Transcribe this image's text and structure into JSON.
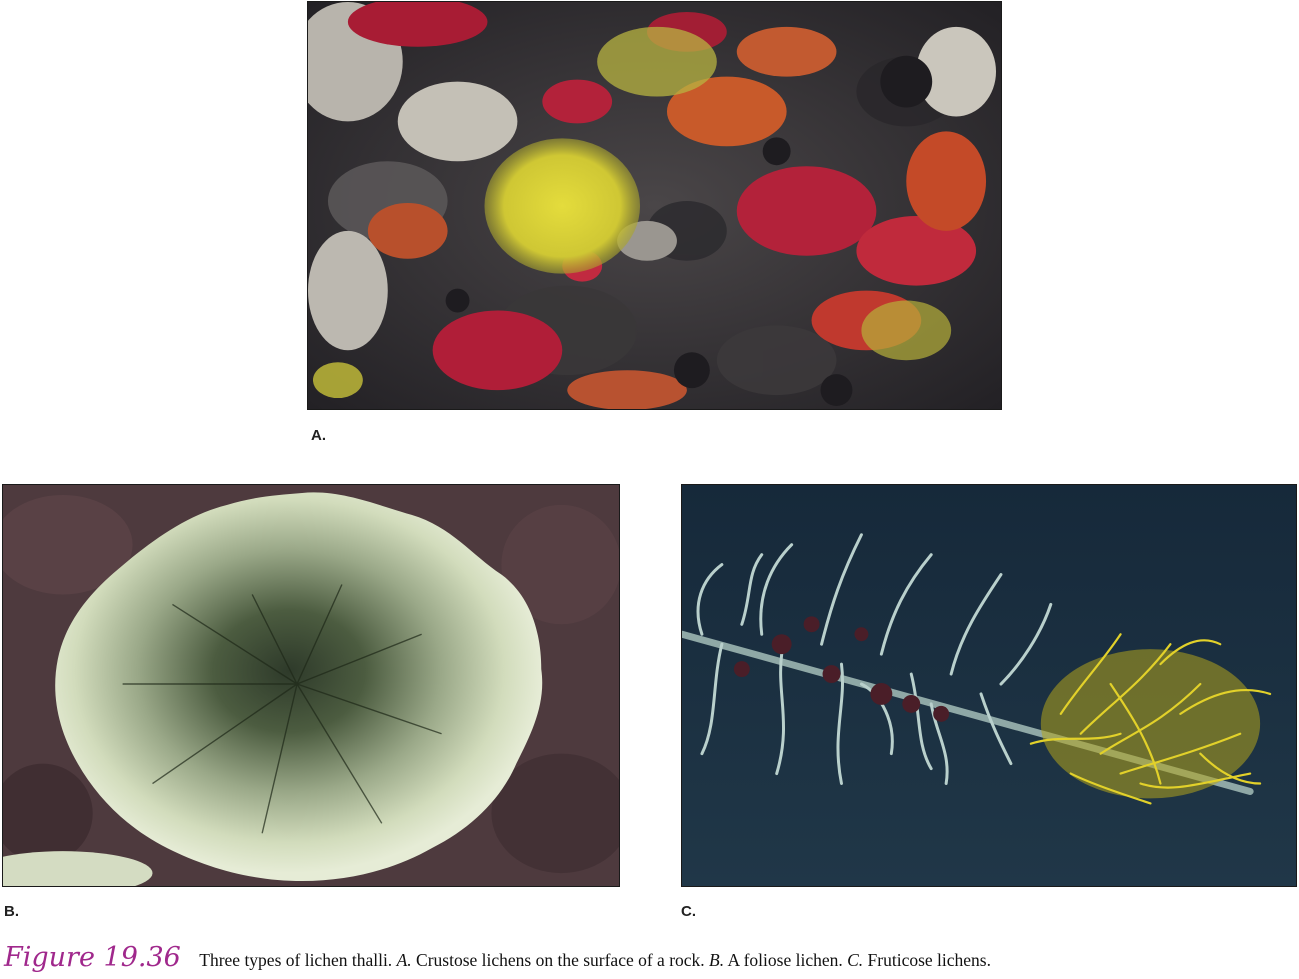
{
  "panels": {
    "a": {
      "label": "A."
    },
    "b": {
      "label": "B."
    },
    "c": {
      "label": "C."
    }
  },
  "caption": {
    "figure_number": "Figure 19.36",
    "intro": "Three types of lichen thalli.",
    "a_tag": "A.",
    "a_text": "Crustose lichens on the surface of a rock.",
    "b_tag": "B.",
    "b_text": "A foliose lichen.",
    "c_tag": "C.",
    "c_text": "Fruticose lichens."
  },
  "colors": {
    "figure_number": "#a0288c",
    "rock_dark": "#2b2a2e",
    "lichen_red": "#b3223a",
    "lichen_orange": "#c85a2a",
    "lichen_yellow": "#d8d23a",
    "foliose_pale": "#cfdcb4",
    "backdrop_blue": "#1c3142",
    "fruticose_yellow": "#e2d12a"
  }
}
